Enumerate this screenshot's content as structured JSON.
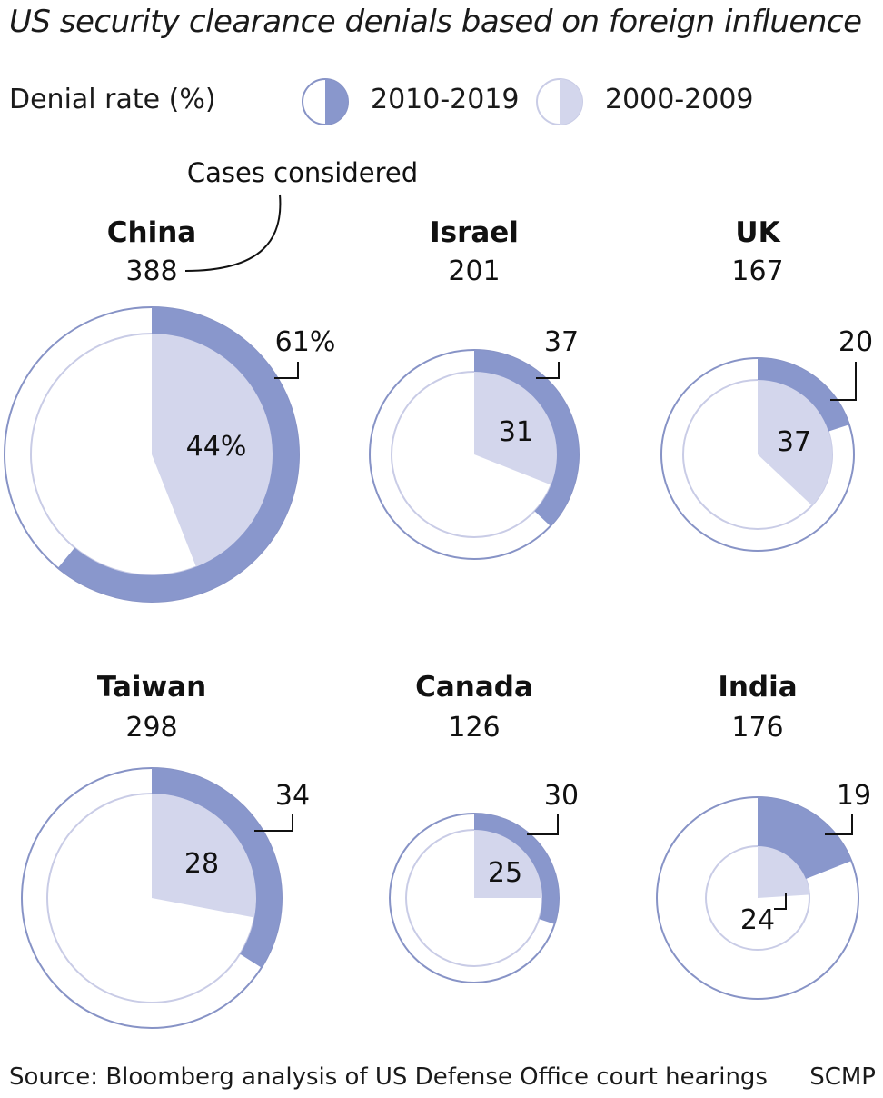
{
  "title": "US security clearance denials based on foreign influence",
  "legend": {
    "label": "Denial rate (%)",
    "items": [
      {
        "name": "2010-2019",
        "color": "#8997cc"
      },
      {
        "name": "2000-2009",
        "color": "#d3d6ec"
      }
    ]
  },
  "annotation": "Cases considered",
  "chart_data": {
    "type": "pie",
    "value_unit": "%",
    "series": [
      {
        "name": "2010-2019",
        "color": "#8997cc"
      },
      {
        "name": "2000-2009",
        "color": "#d3d6ec"
      }
    ],
    "countries": [
      {
        "name": "China",
        "cases": 388,
        "recent": 61,
        "recent_label": "61%",
        "earlier": 44,
        "earlier_label": "44%"
      },
      {
        "name": "Israel",
        "cases": 201,
        "recent": 37,
        "recent_label": "37",
        "earlier": 31,
        "earlier_label": "31"
      },
      {
        "name": "UK",
        "cases": 167,
        "recent": 20,
        "recent_label": "20",
        "earlier": 37,
        "earlier_label": "37"
      },
      {
        "name": "Taiwan",
        "cases": 298,
        "recent": 34,
        "recent_label": "34",
        "earlier": 28,
        "earlier_label": "28"
      },
      {
        "name": "Canada",
        "cases": 126,
        "recent": 30,
        "recent_label": "30",
        "earlier": 25,
        "earlier_label": "25"
      },
      {
        "name": "India",
        "cases": 176,
        "recent": 19,
        "recent_label": "19",
        "earlier": 24,
        "earlier_label": "24"
      }
    ]
  },
  "source": "Source: Bloomberg analysis of US Defense Office court hearings",
  "credit": "SCMP"
}
